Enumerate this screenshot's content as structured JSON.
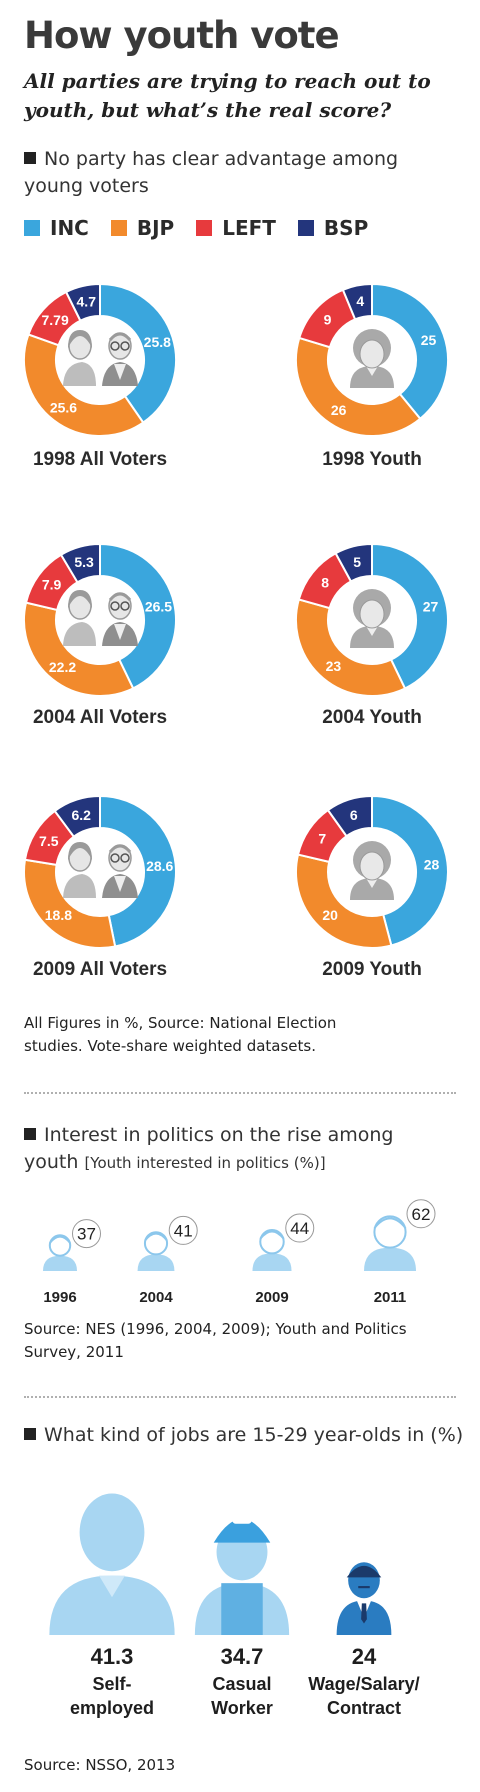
{
  "title": "How youth vote",
  "subtitle": "All parties are trying to reach out to youth, but what’s the real score?",
  "section1": {
    "title": "No party has clear advantage among young voters"
  },
  "colors": {
    "INC": "#3aa6dd",
    "BJP": "#f28a2c",
    "LEFT": "#e73a3d",
    "BSP": "#23357c"
  },
  "icons": [
    "elderly-couple-icon",
    "young-person-icon",
    "young-man-icon",
    "self-employed-person-icon",
    "casual-worker-icon",
    "salaried-worker-icon"
  ],
  "chart_data": [
    {
      "type": "pie",
      "legend": [
        "INC",
        "BJP",
        "LEFT",
        "BSP"
      ],
      "charts": [
        {
          "label": "1998 All Voters",
          "values": {
            "INC": 25.8,
            "BJP": 25.6,
            "LEFT": 7.79,
            "BSP": 4.7
          },
          "display": [
            "25.8",
            "25.6",
            "7.79",
            "4.7"
          ]
        },
        {
          "label": "1998 Youth",
          "values": {
            "INC": 25,
            "BJP": 26,
            "LEFT": 9,
            "BSP": 4
          },
          "display": [
            "25",
            "26",
            "9",
            "4"
          ]
        },
        {
          "label": "2004 All Voters",
          "values": {
            "INC": 26.5,
            "BJP": 22.2,
            "LEFT": 7.9,
            "BSP": 5.3
          },
          "display": [
            "26.5",
            "22.2",
            "7.9",
            "5.3"
          ]
        },
        {
          "label": "2004 Youth",
          "values": {
            "INC": 27,
            "BJP": 23,
            "LEFT": 8,
            "BSP": 5
          },
          "display": [
            "27",
            "23",
            "8",
            "5"
          ]
        },
        {
          "label": "2009 All Voters",
          "values": {
            "INC": 28.6,
            "BJP": 18.8,
            "LEFT": 7.5,
            "BSP": 6.2
          },
          "display": [
            "28.6",
            "18.8",
            "7.5",
            "6.2"
          ]
        },
        {
          "label": "2009 Youth",
          "values": {
            "INC": 28,
            "BJP": 20,
            "LEFT": 7,
            "BSP": 6
          },
          "display": [
            "28",
            "20",
            "7",
            "6"
          ]
        }
      ]
    },
    {
      "type": "bar",
      "title": "Interest in politics on the rise among youth",
      "subtitle": "[Youth interested in politics (%)]",
      "categories": [
        "1996",
        "2004",
        "2009",
        "2011"
      ],
      "values": [
        37,
        41,
        44,
        62
      ]
    },
    {
      "type": "bar",
      "title": "What kind of jobs are 15-29 year-olds in (%)",
      "categories": [
        "Self-employed",
        "Casual Worker",
        "Wage/Salary/ Contract"
      ],
      "labels": [
        [
          "Self-",
          "employed"
        ],
        [
          "Casual",
          "Worker"
        ],
        [
          "Wage/Salary/",
          "Contract"
        ]
      ],
      "values": [
        41.3,
        34.7,
        24
      ]
    }
  ],
  "note1": [
    "All Figures in %, Source: National Election",
    "studies. Vote-share weighted datasets."
  ],
  "section2": {
    "title": "Interest in politics on the rise among",
    "title2": "youth",
    "subtitle": "[Youth interested in politics (%)]"
  },
  "note2": [
    "Source: NES (1996, 2004, 2009); Youth and Politics",
    "Survey, 2011"
  ],
  "section3": {
    "title": "What kind of jobs are 15-29 year-olds in (%)"
  },
  "note3": "Source: NSSO, 2013"
}
